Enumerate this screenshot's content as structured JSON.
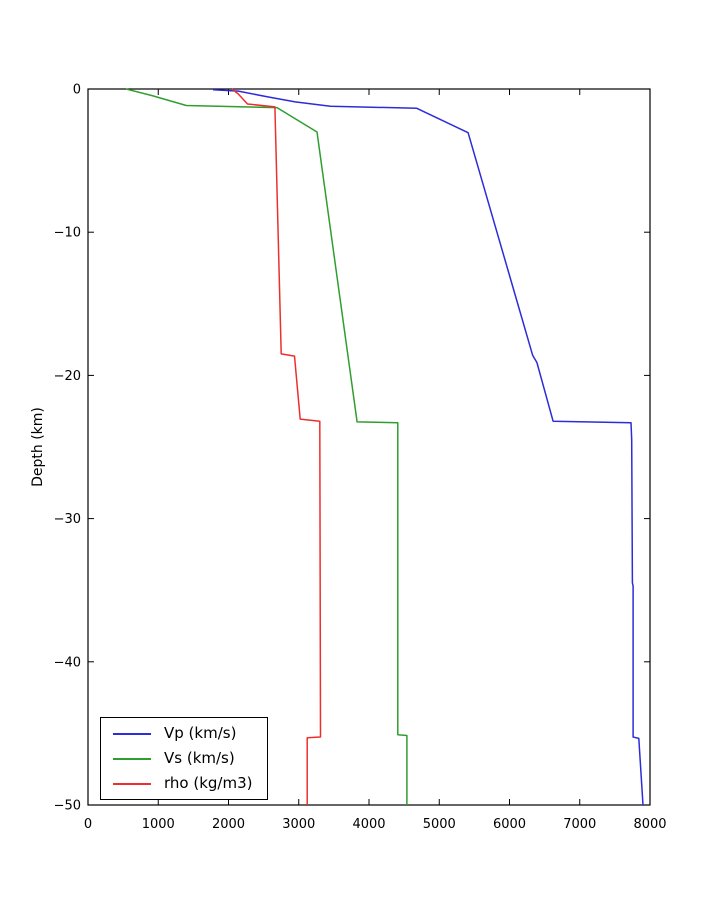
{
  "figure": {
    "background": "#ffffff",
    "axis_color": "#000000"
  },
  "chart_data": {
    "type": "line",
    "title": "",
    "xlabel": "",
    "ylabel": "Depth (km)",
    "xlim": [
      0,
      8000
    ],
    "ylim": [
      -50,
      0
    ],
    "grid": false,
    "legend_position": "lower left",
    "x_ticks": [
      0,
      1000,
      2000,
      3000,
      4000,
      5000,
      6000,
      7000,
      8000
    ],
    "x_tick_labels": [
      "0",
      "1000",
      "2000",
      "3000",
      "4000",
      "5000",
      "6000",
      "7000",
      "8000"
    ],
    "y_ticks": [
      0,
      -10,
      -20,
      -30,
      -40,
      -50
    ],
    "y_tick_labels": [
      "0",
      "−10",
      "−20",
      "−30",
      "−40",
      "−50"
    ],
    "series": [
      {
        "id": "vp",
        "name": "Vp (km/s)",
        "color": "#2c2cd9",
        "points": [
          [
            1780,
            -0.05
          ],
          [
            2140,
            -0.15
          ],
          [
            2560,
            -0.55
          ],
          [
            2950,
            -0.9
          ],
          [
            3450,
            -1.2
          ],
          [
            4680,
            -1.35
          ],
          [
            5410,
            -3.05
          ],
          [
            6330,
            -18.6
          ],
          [
            6390,
            -19.1
          ],
          [
            6620,
            -23.2
          ],
          [
            7730,
            -23.3
          ],
          [
            7740,
            -24.5
          ],
          [
            7750,
            -34.5
          ],
          [
            7760,
            -34.7
          ],
          [
            7760,
            -45.25
          ],
          [
            7840,
            -45.35
          ],
          [
            7900,
            -50
          ]
        ]
      },
      {
        "id": "vs",
        "name": "Vs (km/s)",
        "color": "#2f9e2f",
        "points": [
          [
            540,
            0
          ],
          [
            900,
            -0.45
          ],
          [
            1400,
            -1.15
          ],
          [
            2690,
            -1.3
          ],
          [
            3260,
            -3.0
          ],
          [
            3830,
            -23.25
          ],
          [
            4410,
            -23.3
          ],
          [
            4410,
            -45.1
          ],
          [
            4540,
            -45.15
          ],
          [
            4540,
            -50
          ]
        ]
      },
      {
        "id": "rho",
        "name": "rho (kg/m3)",
        "color": "#ee2e2e",
        "points": [
          [
            2050,
            0
          ],
          [
            2140,
            -0.35
          ],
          [
            2270,
            -1.05
          ],
          [
            2660,
            -1.25
          ],
          [
            2750,
            -18.5
          ],
          [
            2940,
            -18.65
          ],
          [
            3020,
            -23.05
          ],
          [
            3300,
            -23.2
          ],
          [
            3310,
            -45.25
          ],
          [
            3120,
            -45.3
          ],
          [
            3120,
            -50
          ]
        ]
      }
    ]
  }
}
